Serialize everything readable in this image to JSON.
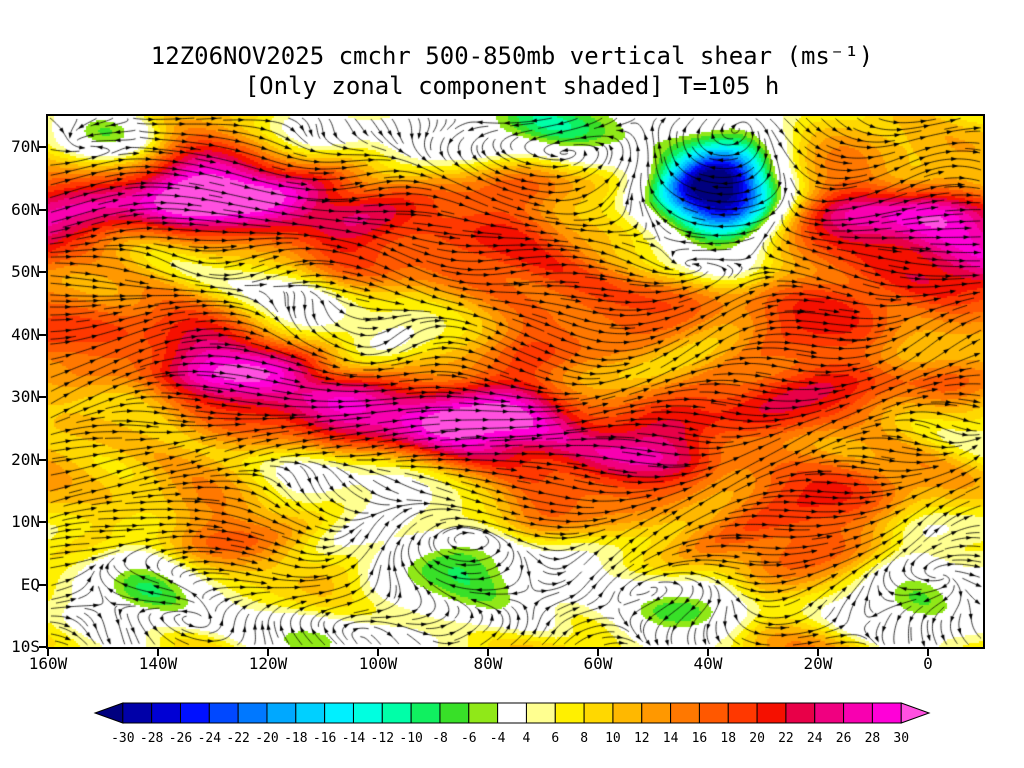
{
  "title": {
    "line1": "12Z06NOV2025 cmchr 500-850mb vertical shear (ms⁻¹)",
    "line2": "[Only zonal component shaded] T=105 h"
  },
  "chart_data": {
    "type": "heatmap",
    "title": "12Z06NOV2025 cmchr 500-850mb vertical shear (ms⁻¹)",
    "subtitle": "[Only zonal component shaded] T=105 h",
    "model": "cmchr",
    "valid_time": "12Z06NOV2025",
    "forecast_hour": 105,
    "units": "ms⁻¹",
    "x_axis": {
      "ticks": [
        "160W",
        "140W",
        "120W",
        "100W",
        "80W",
        "60W",
        "40W",
        "20W",
        "0"
      ],
      "lon_values": [
        -160,
        -140,
        -120,
        -100,
        -80,
        -60,
        -40,
        -20,
        0
      ],
      "lon_range": [
        -160,
        10
      ]
    },
    "y_axis": {
      "ticks": [
        "70N",
        "60N",
        "50N",
        "40N",
        "30N",
        "20N",
        "10N",
        "EQ",
        "10S"
      ],
      "lat_values": [
        70,
        60,
        50,
        40,
        30,
        20,
        10,
        0,
        -10
      ],
      "lat_range": [
        -10,
        75
      ]
    },
    "colorbar": {
      "levels": [
        -30,
        -28,
        -26,
        -24,
        -22,
        -20,
        -18,
        -16,
        -14,
        -12,
        -10,
        -8,
        -6,
        -4,
        4,
        6,
        8,
        10,
        12,
        14,
        16,
        18,
        20,
        22,
        24,
        26,
        28,
        30
      ],
      "tick_labels": [
        "-30",
        "-28",
        "-26",
        "-24",
        "-22",
        "-20",
        "-18",
        "-16",
        "-14",
        "-12",
        "-10",
        "-8",
        "-6",
        "-4",
        "4",
        "6",
        "8",
        "10",
        "12",
        "14",
        "16",
        "18",
        "20",
        "22",
        "24",
        "26",
        "28",
        "30"
      ],
      "colors": [
        "#00007f",
        "#0000a8",
        "#0000d4",
        "#0010ff",
        "#0048ff",
        "#0078ff",
        "#00a8ff",
        "#00d0ff",
        "#00f0ff",
        "#00ffe0",
        "#00ffa8",
        "#10f060",
        "#38e028",
        "#90e818",
        "#ffffff",
        "#ffff90",
        "#fff000",
        "#ffd800",
        "#ffb800",
        "#ff9800",
        "#ff7800",
        "#ff5800",
        "#ff3800",
        "#f51000",
        "#e80048",
        "#f00080",
        "#f800b0",
        "#ff00d8",
        "#ff50e0"
      ]
    }
  }
}
